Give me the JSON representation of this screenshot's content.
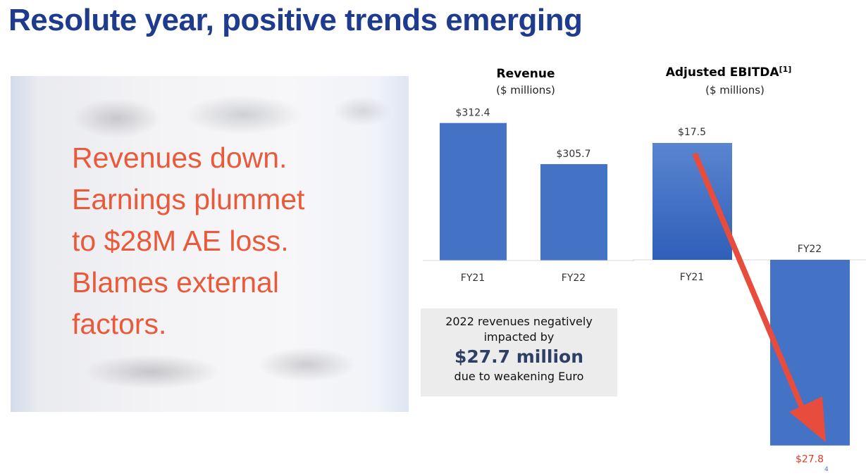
{
  "slide": {
    "title": "Resolute year, positive trends emerging",
    "page_number": "4"
  },
  "callout": {
    "lines": [
      "Revenues down.",
      "Earnings plummet",
      "to $28M AE loss.",
      "Blames external",
      "factors."
    ],
    "color": "#ea5a3a"
  },
  "note": {
    "line1": "2022 revenues negatively",
    "line2": "impacted by",
    "highlight": "$27.7 million",
    "line3": "due to weakening Euro"
  },
  "colors": {
    "bar": "#4472c4",
    "arrow": "#e84c3d",
    "title": "#1f3b8e"
  },
  "chart_data": [
    {
      "type": "bar",
      "title": "Revenue",
      "subtitle": "($ millions)",
      "categories": [
        "FY21",
        "FY22"
      ],
      "values": [
        312.4,
        305.7
      ],
      "value_labels": [
        "$312.4",
        "$305.7"
      ],
      "axis_note": "y-axis not shown; baseline broken (bars not to zero)",
      "grid": false
    },
    {
      "type": "bar",
      "title": "Adjusted EBITDA",
      "title_superscript": "[1]",
      "subtitle": "($ millions)",
      "categories": [
        "FY21",
        "FY22"
      ],
      "values": [
        17.5,
        -27.8
      ],
      "value_labels": [
        "$17.5",
        "$27.8"
      ],
      "grid": false
    }
  ]
}
